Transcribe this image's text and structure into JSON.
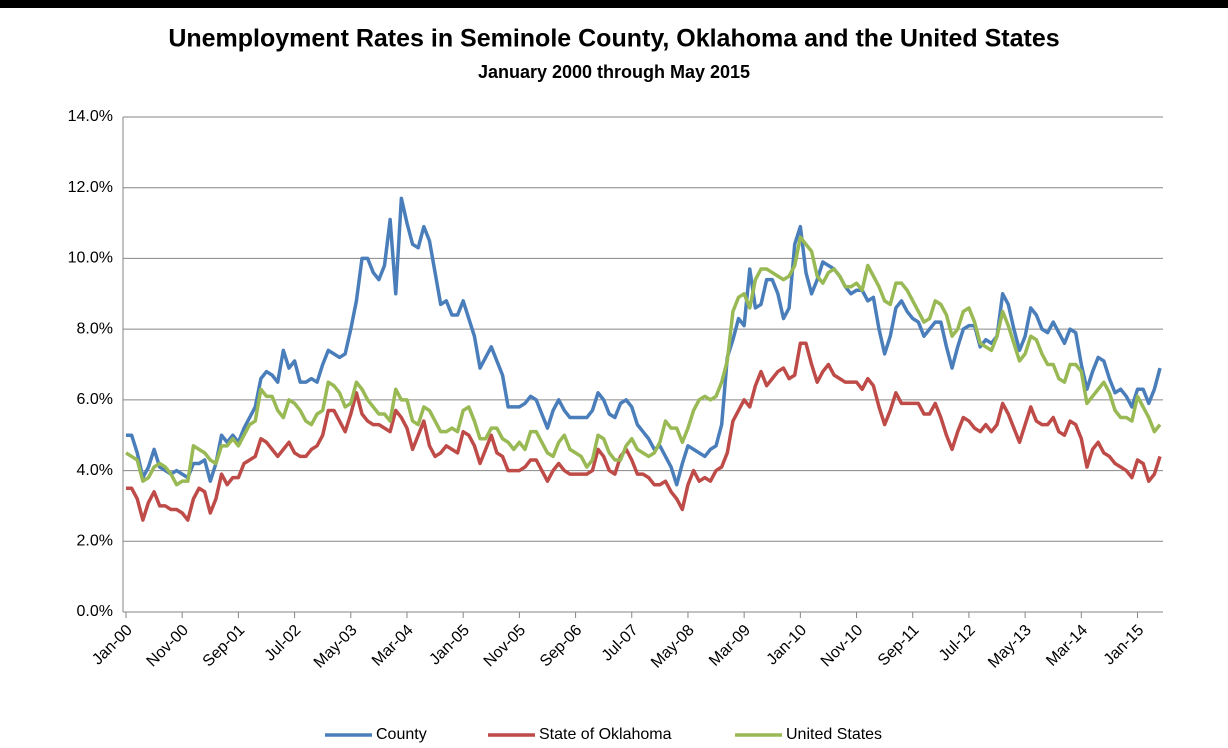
{
  "chart_data": {
    "type": "line",
    "title": "Unemployment Rates in Seminole County, Oklahoma and the United States",
    "subtitle": "January 2000 through May 2015",
    "categories": [
      "Jan-00",
      null,
      null,
      null,
      null,
      null,
      null,
      null,
      null,
      null,
      "Nov-00",
      null,
      null,
      null,
      null,
      null,
      null,
      null,
      null,
      null,
      "Sep-01",
      null,
      null,
      null,
      null,
      null,
      null,
      null,
      null,
      null,
      "Jul-02",
      null,
      null,
      null,
      null,
      null,
      null,
      null,
      null,
      null,
      "May-03",
      null,
      null,
      null,
      null,
      null,
      null,
      null,
      null,
      null,
      "Mar-04",
      null,
      null,
      null,
      null,
      null,
      null,
      null,
      null,
      null,
      "Jan-05",
      null,
      null,
      null,
      null,
      null,
      null,
      null,
      null,
      null,
      "Nov-05",
      null,
      null,
      null,
      null,
      null,
      null,
      null,
      null,
      null,
      "Sep-06",
      null,
      null,
      null,
      null,
      null,
      null,
      null,
      null,
      null,
      "Jul-07",
      null,
      null,
      null,
      null,
      null,
      null,
      null,
      null,
      null,
      "May-08",
      null,
      null,
      null,
      null,
      null,
      null,
      null,
      null,
      null,
      "Mar-09",
      null,
      null,
      null,
      null,
      null,
      null,
      null,
      null,
      null,
      "Jan-10",
      null,
      null,
      null,
      null,
      null,
      null,
      null,
      null,
      null,
      "Nov-10",
      null,
      null,
      null,
      null,
      null,
      null,
      null,
      null,
      null,
      "Sep-11",
      null,
      null,
      null,
      null,
      null,
      null,
      null,
      null,
      null,
      "Jul-12",
      null,
      null,
      null,
      null,
      null,
      null,
      null,
      null,
      null,
      "May-13",
      null,
      null,
      null,
      null,
      null,
      null,
      null,
      null,
      null,
      "Mar-14",
      null,
      null,
      null,
      null,
      null,
      null,
      null,
      null,
      null,
      "Jan-15",
      null,
      null,
      null,
      null
    ],
    "series": [
      {
        "name": "County",
        "color": "#4a7ebb",
        "values": [
          5.0,
          5.0,
          4.5,
          3.8,
          4.1,
          4.6,
          4.1,
          4.0,
          3.9,
          4.0,
          3.9,
          3.8,
          4.2,
          4.2,
          4.3,
          3.7,
          4.2,
          5.0,
          4.8,
          5.0,
          4.8,
          5.2,
          5.5,
          5.8,
          6.6,
          6.8,
          6.7,
          6.5,
          7.4,
          6.9,
          7.1,
          6.5,
          6.5,
          6.6,
          6.5,
          7.0,
          7.4,
          7.3,
          7.2,
          7.3,
          8.0,
          8.8,
          10.0,
          10.0,
          9.6,
          9.4,
          9.8,
          11.1,
          9.0,
          11.7,
          11.0,
          10.4,
          10.3,
          10.9,
          10.5,
          9.6,
          8.7,
          8.8,
          8.4,
          8.4,
          8.8,
          8.3,
          7.8,
          6.9,
          7.2,
          7.5,
          7.1,
          6.7,
          5.8,
          5.8,
          5.8,
          5.9,
          6.1,
          6.0,
          5.6,
          5.2,
          5.7,
          6.0,
          5.7,
          5.5,
          5.5,
          5.5,
          5.5,
          5.7,
          6.2,
          6.0,
          5.6,
          5.5,
          5.9,
          6.0,
          5.8,
          5.3,
          5.1,
          4.9,
          4.6,
          4.7,
          4.4,
          4.1,
          3.6,
          4.2,
          4.7,
          4.6,
          4.5,
          4.4,
          4.6,
          4.7,
          5.3,
          7.2,
          7.7,
          8.3,
          8.1,
          9.7,
          8.6,
          8.7,
          9.4,
          9.4,
          9.0,
          8.3,
          8.6,
          10.4,
          10.9,
          9.6,
          9.0,
          9.4,
          9.9,
          9.8,
          9.7,
          9.5,
          9.2,
          9.0,
          9.1,
          9.1,
          8.8,
          8.9,
          8.0,
          7.3,
          7.8,
          8.6,
          8.8,
          8.5,
          8.3,
          8.2,
          7.8,
          8.0,
          8.2,
          8.2,
          7.5,
          6.9,
          7.5,
          8.0,
          8.1,
          8.1,
          7.5,
          7.7,
          7.6,
          7.8,
          9.0,
          8.7,
          8.0,
          7.4,
          7.8,
          8.6,
          8.4,
          8.0,
          7.9,
          8.2,
          7.9,
          7.6,
          8.0,
          7.9,
          7.0,
          6.3,
          6.8,
          7.2,
          7.1,
          6.6,
          6.2,
          6.3,
          6.1,
          5.8,
          6.3,
          6.3,
          5.9,
          6.3,
          6.9
        ]
      },
      {
        "name": "State of Oklahoma",
        "color": "#be4b48",
        "values": [
          3.5,
          3.5,
          3.2,
          2.6,
          3.1,
          3.4,
          3.0,
          3.0,
          2.9,
          2.9,
          2.8,
          2.6,
          3.2,
          3.5,
          3.4,
          2.8,
          3.2,
          3.9,
          3.6,
          3.8,
          3.8,
          4.2,
          4.3,
          4.4,
          4.9,
          4.8,
          4.6,
          4.4,
          4.6,
          4.8,
          4.5,
          4.4,
          4.4,
          4.6,
          4.7,
          5.0,
          5.7,
          5.7,
          5.4,
          5.1,
          5.6,
          6.2,
          5.6,
          5.4,
          5.3,
          5.3,
          5.2,
          5.1,
          5.7,
          5.5,
          5.2,
          4.6,
          5.0,
          5.4,
          4.7,
          4.4,
          4.5,
          4.7,
          4.6,
          4.5,
          5.1,
          5.0,
          4.7,
          4.2,
          4.6,
          5.0,
          4.5,
          4.4,
          4.0,
          4.0,
          4.0,
          4.1,
          4.3,
          4.3,
          4.0,
          3.7,
          4.0,
          4.2,
          4.0,
          3.9,
          3.9,
          3.9,
          3.9,
          4.0,
          4.6,
          4.4,
          4.0,
          3.9,
          4.4,
          4.6,
          4.3,
          3.9,
          3.9,
          3.8,
          3.6,
          3.6,
          3.7,
          3.4,
          3.2,
          2.9,
          3.6,
          4.0,
          3.7,
          3.8,
          3.7,
          4.0,
          4.1,
          4.5,
          5.4,
          5.7,
          6.0,
          5.8,
          6.4,
          6.8,
          6.4,
          6.6,
          6.8,
          6.9,
          6.6,
          6.7,
          7.6,
          7.6,
          7.0,
          6.5,
          6.8,
          7.0,
          6.7,
          6.6,
          6.5,
          6.5,
          6.5,
          6.3,
          6.6,
          6.4,
          5.8,
          5.3,
          5.7,
          6.2,
          5.9,
          5.9,
          5.9,
          5.9,
          5.6,
          5.6,
          5.9,
          5.5,
          5.0,
          4.6,
          5.1,
          5.5,
          5.4,
          5.2,
          5.1,
          5.3,
          5.1,
          5.3,
          5.9,
          5.6,
          5.2,
          4.8,
          5.3,
          5.8,
          5.4,
          5.3,
          5.3,
          5.5,
          5.1,
          5.0,
          5.4,
          5.3,
          4.9,
          4.1,
          4.6,
          4.8,
          4.5,
          4.4,
          4.2,
          4.1,
          4.0,
          3.8,
          4.3,
          4.2,
          3.7,
          3.9,
          4.4
        ]
      },
      {
        "name": "United States",
        "color": "#98b954",
        "values": [
          4.5,
          4.4,
          4.3,
          3.7,
          3.8,
          4.1,
          4.2,
          4.1,
          3.9,
          3.6,
          3.7,
          3.7,
          4.7,
          4.6,
          4.5,
          4.3,
          4.2,
          4.7,
          4.7,
          4.9,
          4.7,
          5.0,
          5.3,
          5.4,
          6.3,
          6.1,
          6.1,
          5.7,
          5.5,
          6.0,
          5.9,
          5.7,
          5.4,
          5.3,
          5.6,
          5.7,
          6.5,
          6.4,
          6.2,
          5.8,
          5.9,
          6.5,
          6.3,
          6.0,
          5.8,
          5.6,
          5.6,
          5.4,
          6.3,
          6.0,
          6.0,
          5.4,
          5.3,
          5.8,
          5.7,
          5.4,
          5.1,
          5.1,
          5.2,
          5.1,
          5.7,
          5.8,
          5.4,
          4.9,
          4.9,
          5.2,
          5.2,
          4.9,
          4.8,
          4.6,
          4.8,
          4.6,
          5.1,
          5.1,
          4.8,
          4.5,
          4.4,
          4.8,
          5.0,
          4.6,
          4.5,
          4.4,
          4.1,
          4.3,
          5.0,
          4.9,
          4.5,
          4.3,
          4.3,
          4.7,
          4.9,
          4.6,
          4.5,
          4.4,
          4.5,
          4.8,
          5.4,
          5.2,
          5.2,
          4.8,
          5.2,
          5.7,
          6.0,
          6.1,
          6.0,
          6.1,
          6.5,
          7.1,
          8.5,
          8.9,
          9.0,
          8.6,
          9.4,
          9.7,
          9.7,
          9.6,
          9.5,
          9.4,
          9.5,
          9.8,
          10.6,
          10.4,
          10.2,
          9.5,
          9.3,
          9.6,
          9.7,
          9.5,
          9.2,
          9.2,
          9.3,
          9.1,
          9.8,
          9.5,
          9.2,
          8.8,
          8.7,
          9.3,
          9.3,
          9.1,
          8.8,
          8.5,
          8.2,
          8.3,
          8.8,
          8.7,
          8.4,
          7.8,
          8.0,
          8.5,
          8.6,
          8.2,
          7.6,
          7.5,
          7.4,
          7.8,
          8.5,
          8.1,
          7.6,
          7.1,
          7.3,
          7.8,
          7.7,
          7.3,
          7.0,
          7.0,
          6.6,
          6.5,
          7.0,
          7.0,
          6.8,
          5.9,
          6.1,
          6.3,
          6.5,
          6.2,
          5.7,
          5.5,
          5.5,
          5.4,
          6.1,
          5.8,
          5.5,
          5.1,
          5.3
        ]
      }
    ],
    "ylim": [
      0,
      14
    ],
    "yticks": [
      {
        "value": 0,
        "label": "0.0%"
      },
      {
        "value": 2,
        "label": "2.0%"
      },
      {
        "value": 4,
        "label": "4.0%"
      },
      {
        "value": 6,
        "label": "6.0%"
      },
      {
        "value": 8,
        "label": "8.0%"
      },
      {
        "value": 10,
        "label": "10.0%"
      },
      {
        "value": 12,
        "label": "12.0%"
      },
      {
        "value": 14,
        "label": "14.0%"
      }
    ],
    "grid": true,
    "legend": "bottom"
  }
}
